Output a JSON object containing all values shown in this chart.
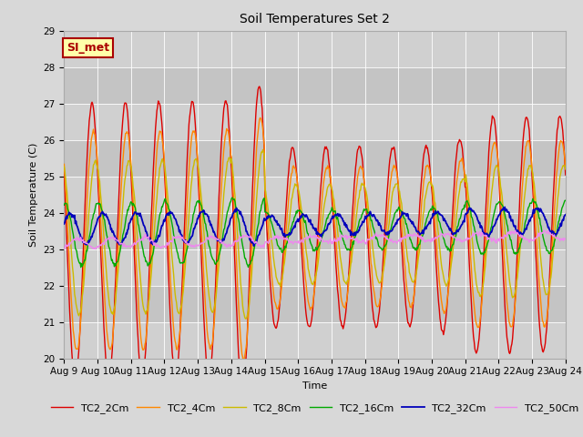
{
  "title": "Soil Temperatures Set 2",
  "xlabel": "Time",
  "ylabel": "Soil Temperature (C)",
  "ylim": [
    20.0,
    29.0
  ],
  "yticks": [
    20.0,
    21.0,
    22.0,
    23.0,
    24.0,
    25.0,
    26.0,
    27.0,
    28.0,
    29.0
  ],
  "n_points": 720,
  "series": {
    "TC2_2Cm": {
      "color": "#dd0000",
      "lw": 1.0,
      "amplitude": 3.8,
      "phase_hr": 14.0,
      "mean": 23.2
    },
    "TC2_4Cm": {
      "color": "#ff8800",
      "lw": 1.0,
      "amplitude": 3.0,
      "phase_hr": 15.0,
      "mean": 23.2
    },
    "TC2_8Cm": {
      "color": "#ccbb00",
      "lw": 1.0,
      "amplitude": 2.1,
      "phase_hr": 16.5,
      "mean": 23.3
    },
    "TC2_16Cm": {
      "color": "#00aa00",
      "lw": 1.0,
      "amplitude": 0.85,
      "phase_hr": 18.5,
      "mean": 23.4
    },
    "TC2_32Cm": {
      "color": "#0000bb",
      "lw": 1.3,
      "amplitude": 0.42,
      "phase_hr": 22.0,
      "mean": 23.55
    },
    "TC2_50Cm": {
      "color": "#ee88ee",
      "lw": 1.0,
      "amplitude": 0.13,
      "phase_hr": 4.0,
      "mean": 23.15
    }
  },
  "xtick_labels": [
    "Aug 9",
    "Aug 10",
    "Aug 11",
    "Aug 12",
    "Aug 13",
    "Aug 14",
    "Aug 15",
    "Aug 16",
    "Aug 17",
    "Aug 18",
    "Aug 19",
    "Aug 20",
    "Aug 21",
    "Aug 22",
    "Aug 23",
    "Aug 24"
  ],
  "bg_color": "#d8d8d8",
  "plot_bg": "#d8d8d8",
  "band_colors": [
    "#d0d0d0",
    "#c4c4c4"
  ],
  "annotation_text": "SI_met",
  "annotation_fg": "#aa0000",
  "annotation_bg": "#ffffaa",
  "annotation_border": "#aa0000",
  "title_fontsize": 10,
  "axis_label_fontsize": 8,
  "tick_fontsize": 7.5,
  "legend_fontsize": 8
}
